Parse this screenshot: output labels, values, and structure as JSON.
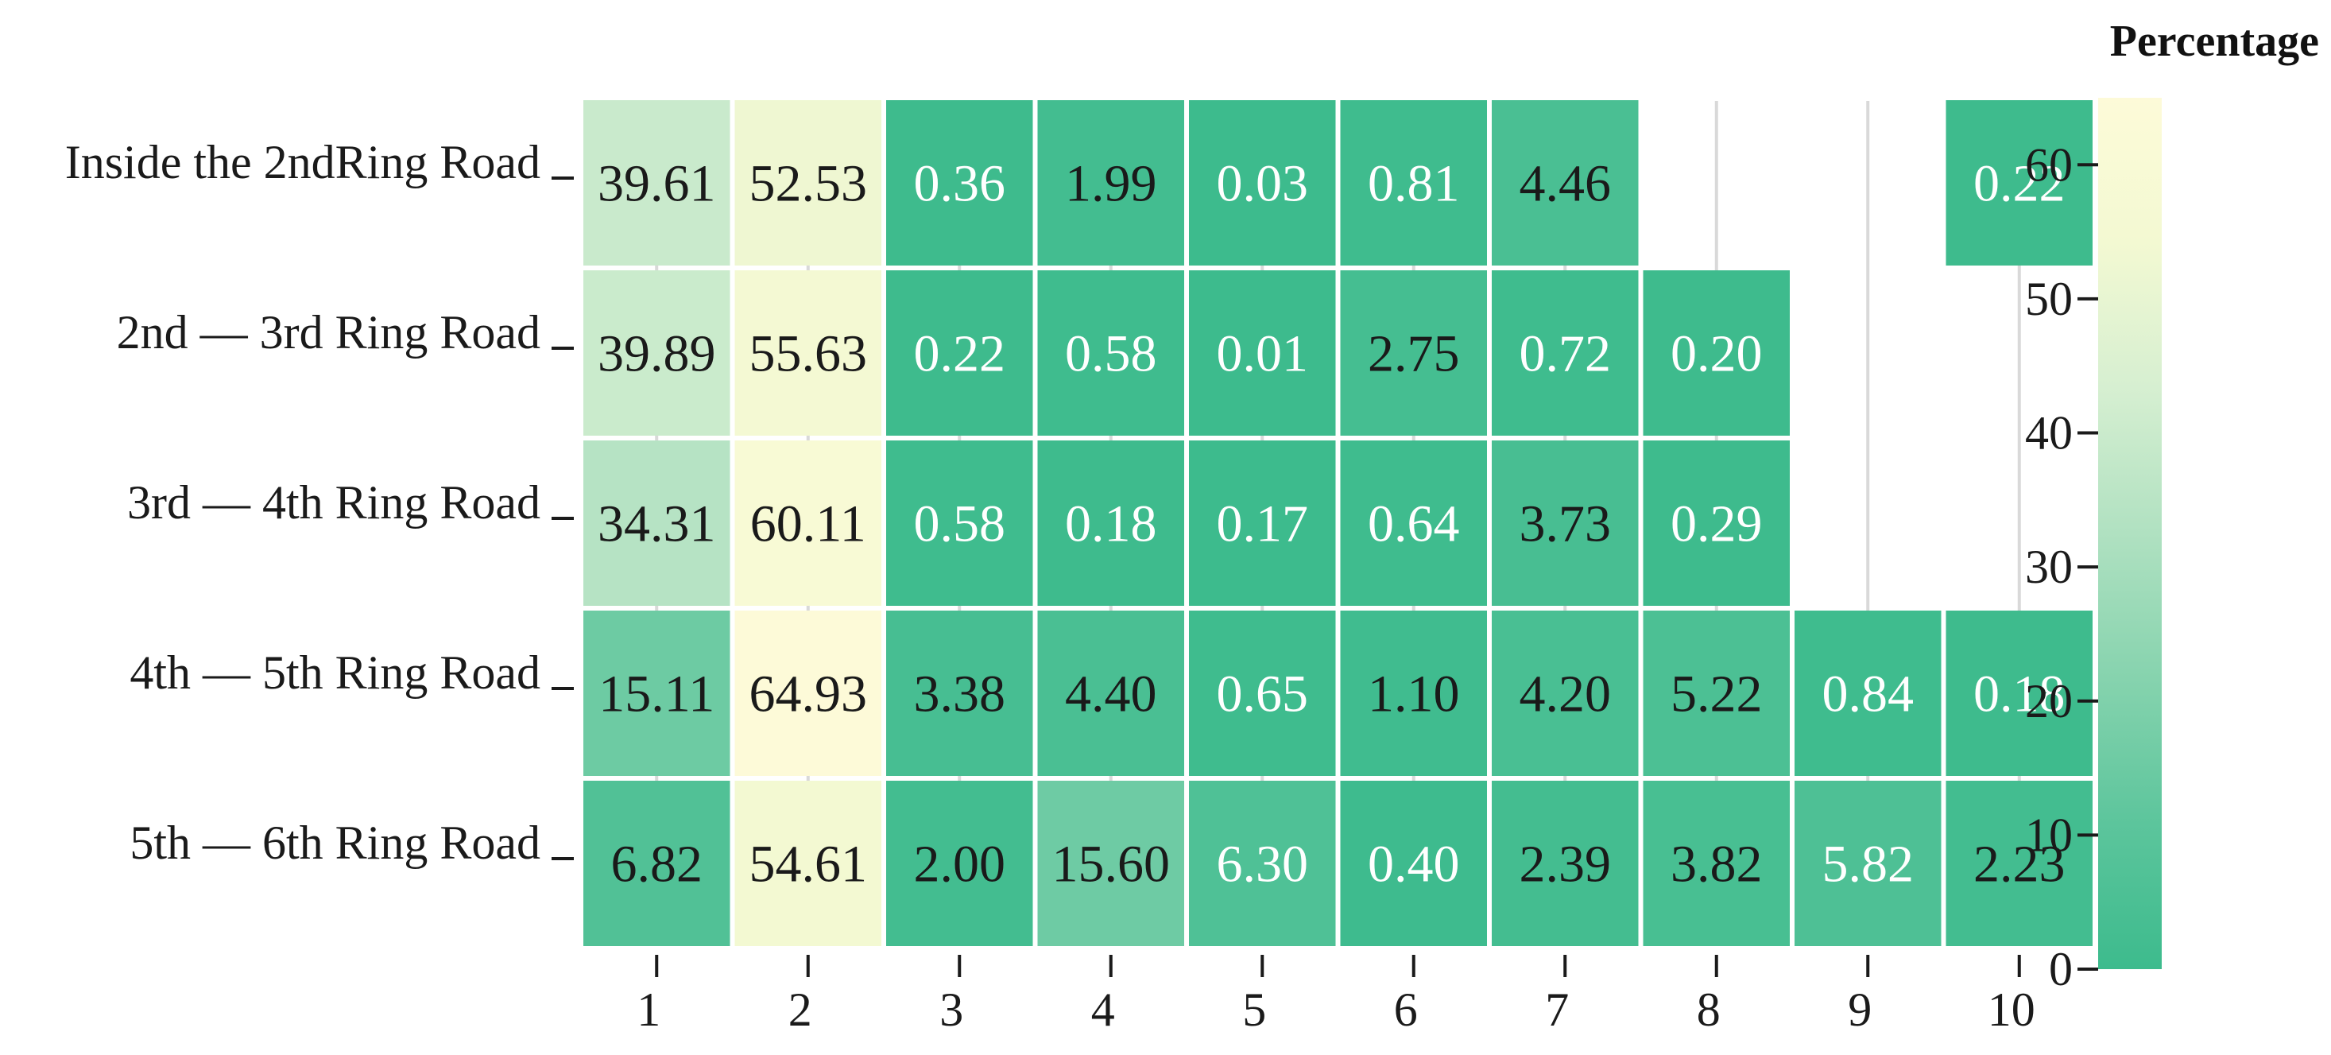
{
  "chart_data": {
    "type": "heatmap",
    "rows": [
      "Inside the 2ndRing Road",
      "2nd — 3rd Ring Road",
      "3rd — 4th Ring Road",
      "4th — 5th Ring Road",
      "5th — 6th Ring Road"
    ],
    "columns": [
      "1",
      "2",
      "3",
      "4",
      "5",
      "6",
      "7",
      "8",
      "9",
      "10"
    ],
    "values": [
      [
        39.61,
        52.53,
        0.36,
        1.99,
        0.03,
        0.81,
        4.46,
        null,
        null,
        0.22
      ],
      [
        39.89,
        55.63,
        0.22,
        0.58,
        0.01,
        2.75,
        0.72,
        0.2,
        null,
        null
      ],
      [
        34.31,
        60.11,
        0.58,
        0.18,
        0.17,
        0.64,
        3.73,
        0.29,
        null,
        null
      ],
      [
        15.11,
        64.93,
        3.38,
        4.4,
        0.65,
        1.1,
        4.2,
        5.22,
        0.84,
        0.18
      ],
      [
        6.82,
        54.61,
        2.0,
        15.6,
        6.3,
        0.4,
        2.39,
        3.82,
        5.82,
        2.23
      ]
    ],
    "value_labels": [
      [
        "39.61",
        "52.53",
        "0.36",
        "1.99",
        "0.03",
        "0.81",
        "4.46",
        "",
        "",
        "0.22"
      ],
      [
        "39.89",
        "55.63",
        "0.22",
        "0.58",
        "0.01",
        "2.75",
        "0.72",
        "0.20",
        "",
        ""
      ],
      [
        "34.31",
        "60.11",
        "0.58",
        "0.18",
        "0.17",
        "0.64",
        "3.73",
        "0.29",
        "",
        ""
      ],
      [
        "15.11",
        "64.93",
        "3.38",
        "4.40",
        "0.65",
        "1.10",
        "4.20",
        "5.22",
        "0.84",
        "0.18"
      ],
      [
        "6.82",
        "54.61",
        "2.00",
        "15.60",
        "6.30",
        "0.40",
        "2.39",
        "3.82",
        "5.82",
        "2.23"
      ]
    ],
    "colorbar": {
      "title": "Percentage",
      "range": [
        0,
        65
      ],
      "ticks": [
        0,
        10,
        20,
        30,
        40,
        50,
        60
      ],
      "tick_labels": [
        "0",
        "10",
        "20",
        "30",
        "40",
        "50",
        "60"
      ],
      "colors": [
        "#3dbb8d",
        "#5cc59c",
        "#86d3ae",
        "#b0e1c1",
        "#d6efd1",
        "#f3f9d2",
        "#fdfad8"
      ]
    },
    "missing_cells": "blank",
    "gridlines": "vertical light-grey lines at column centers"
  }
}
